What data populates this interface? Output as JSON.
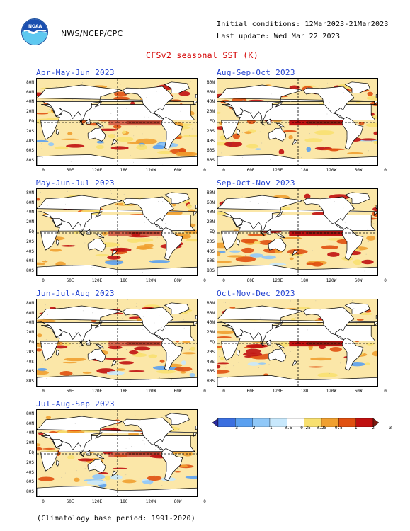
{
  "header": {
    "agency": "NWS/NCEP/CPC",
    "logo_text": "NOAA",
    "initial_conditions": "Initial conditions: 12Mar2023-21Mar2023",
    "last_update": "Last update: Wed Mar 22 2023",
    "title": "CFSv2 seasonal SST (K)"
  },
  "panels": [
    {
      "title": "Apr-May-Jun 2023"
    },
    {
      "title": "Aug-Sep-Oct 2023"
    },
    {
      "title": "May-Jun-Jul 2023"
    },
    {
      "title": "Sep-Oct-Nov 2023"
    },
    {
      "title": "Jun-Jul-Aug 2023"
    },
    {
      "title": "Oct-Nov-Dec 2023"
    },
    {
      "title": "Jul-Aug-Sep 2023"
    }
  ],
  "axes": {
    "lat_labels": [
      "80N",
      "60N",
      "40N",
      "20N",
      "EQ",
      "20S",
      "40S",
      "60S",
      "80S"
    ],
    "lon_labels": [
      "0",
      "60E",
      "120E",
      "180",
      "120W",
      "60W",
      "0"
    ]
  },
  "colorbar": {
    "labels": [
      "-3",
      "-2",
      "-1",
      "-0.5",
      "-0.25",
      "0.25",
      "0.5",
      "1",
      "2",
      "3"
    ],
    "colors": [
      "#2a2aa0",
      "#3b6fe0",
      "#5aa0f0",
      "#90c8f8",
      "#c8e8fc",
      "#ffffff",
      "#f8e070",
      "#f0a030",
      "#e05010",
      "#c01010",
      "#7a1a10"
    ]
  },
  "footer": {
    "note": "(Climatology base period: 1991-2020)"
  }
}
